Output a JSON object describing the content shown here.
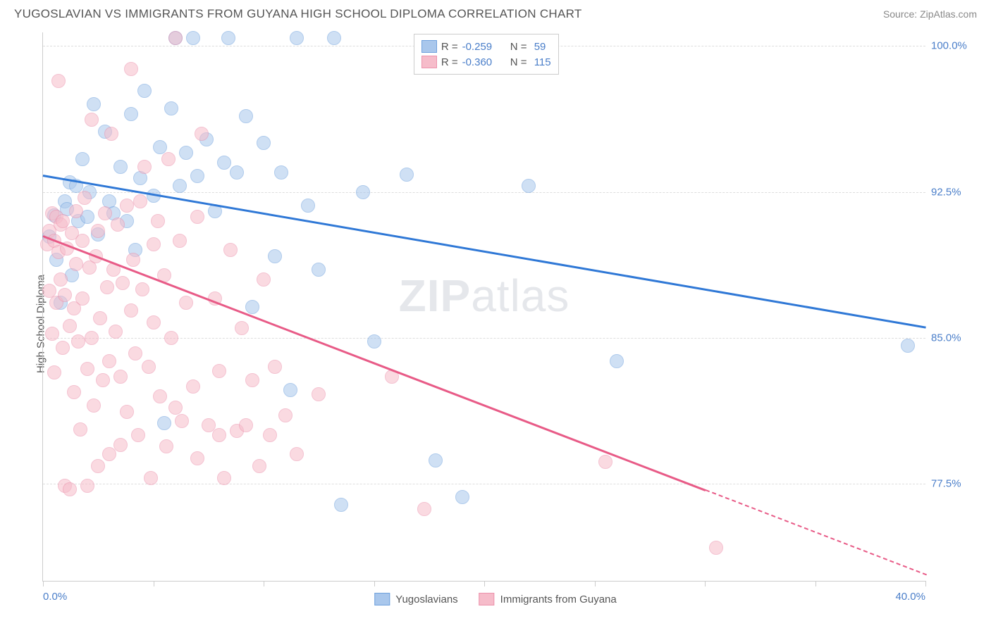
{
  "header": {
    "title": "YUGOSLAVIAN VS IMMIGRANTS FROM GUYANA HIGH SCHOOL DIPLOMA CORRELATION CHART",
    "source_prefix": "Source: ",
    "source": "ZipAtlas.com"
  },
  "watermark": {
    "part1": "ZIP",
    "part2": "atlas"
  },
  "chart": {
    "type": "scatter",
    "y_axis_title": "High School Diploma",
    "xlim": [
      0,
      40
    ],
    "ylim": [
      72.5,
      100.7
    ],
    "x_ticks": [
      0,
      5,
      10,
      15,
      20,
      25,
      30,
      35,
      40
    ],
    "x_tick_labels": {
      "0": "0.0%",
      "40": "40.0%"
    },
    "y_gridlines": [
      77.5,
      85.0,
      92.5,
      100.0
    ],
    "y_tick_labels": {
      "77.5": "77.5%",
      "85.0": "85.0%",
      "92.5": "92.5%",
      "100.0": "100.0%"
    },
    "grid_color": "#dddddd",
    "axis_color": "#cccccc",
    "label_color": "#4a7ec9",
    "label_fontsize": 15,
    "point_radius": 10,
    "point_opacity": 0.55,
    "series": [
      {
        "id": "yugoslavians",
        "label": "Yugoslavians",
        "fill": "#a9c7ec",
        "stroke": "#6fa1dd",
        "line_color": "#2f78d6",
        "R": "-0.259",
        "N": "59",
        "regression": {
          "x1": 0,
          "y1": 93.4,
          "x2": 40,
          "y2": 85.6,
          "dash_from": null
        },
        "points": [
          [
            0.3,
            90.2
          ],
          [
            0.5,
            91.3
          ],
          [
            0.6,
            89.0
          ],
          [
            0.8,
            86.8
          ],
          [
            1.0,
            92.0
          ],
          [
            1.1,
            91.6
          ],
          [
            1.2,
            93.0
          ],
          [
            1.3,
            88.2
          ],
          [
            1.5,
            92.8
          ],
          [
            1.6,
            91.0
          ],
          [
            1.8,
            94.2
          ],
          [
            2.0,
            91.2
          ],
          [
            2.1,
            92.5
          ],
          [
            2.3,
            97.0
          ],
          [
            2.5,
            90.3
          ],
          [
            2.8,
            95.6
          ],
          [
            3.0,
            92.0
          ],
          [
            3.2,
            91.4
          ],
          [
            3.5,
            93.8
          ],
          [
            3.8,
            91.0
          ],
          [
            4.0,
            96.5
          ],
          [
            4.2,
            89.5
          ],
          [
            4.4,
            93.2
          ],
          [
            4.6,
            97.7
          ],
          [
            5.0,
            92.3
          ],
          [
            5.3,
            94.8
          ],
          [
            5.5,
            80.6
          ],
          [
            5.8,
            96.8
          ],
          [
            6.0,
            100.4
          ],
          [
            6.2,
            92.8
          ],
          [
            6.5,
            94.5
          ],
          [
            6.8,
            100.4
          ],
          [
            7.0,
            93.3
          ],
          [
            7.4,
            95.2
          ],
          [
            7.8,
            91.5
          ],
          [
            8.2,
            94.0
          ],
          [
            8.4,
            100.4
          ],
          [
            8.8,
            93.5
          ],
          [
            9.2,
            96.4
          ],
          [
            9.5,
            86.6
          ],
          [
            10.0,
            95.0
          ],
          [
            10.5,
            89.2
          ],
          [
            10.8,
            93.5
          ],
          [
            11.2,
            82.3
          ],
          [
            11.5,
            100.4
          ],
          [
            12.0,
            91.8
          ],
          [
            12.5,
            88.5
          ],
          [
            13.2,
            100.4
          ],
          [
            13.5,
            76.4
          ],
          [
            14.5,
            92.5
          ],
          [
            15.0,
            84.8
          ],
          [
            16.5,
            93.4
          ],
          [
            17.8,
            78.7
          ],
          [
            19.0,
            76.8
          ],
          [
            22.0,
            92.8
          ],
          [
            26.0,
            83.8
          ],
          [
            39.2,
            84.6
          ]
        ]
      },
      {
        "id": "guyana",
        "label": "Immigrants from Guyana",
        "fill": "#f6bcca",
        "stroke": "#ec92ac",
        "line_color": "#e85b87",
        "R": "-0.360",
        "N": "115",
        "regression": {
          "x1": 0,
          "y1": 90.3,
          "x2": 40,
          "y2": 72.9,
          "dash_from": 30
        },
        "points": [
          [
            0.2,
            89.8
          ],
          [
            0.3,
            90.5
          ],
          [
            0.3,
            87.4
          ],
          [
            0.4,
            91.4
          ],
          [
            0.4,
            85.2
          ],
          [
            0.5,
            90.0
          ],
          [
            0.5,
            83.2
          ],
          [
            0.6,
            91.2
          ],
          [
            0.6,
            86.8
          ],
          [
            0.7,
            89.4
          ],
          [
            0.7,
            98.2
          ],
          [
            0.8,
            90.8
          ],
          [
            0.8,
            88.0
          ],
          [
            0.9,
            84.5
          ],
          [
            0.9,
            91.0
          ],
          [
            1.0,
            87.2
          ],
          [
            1.0,
            77.4
          ],
          [
            1.1,
            89.6
          ],
          [
            1.2,
            85.6
          ],
          [
            1.2,
            77.2
          ],
          [
            1.3,
            90.4
          ],
          [
            1.4,
            86.5
          ],
          [
            1.4,
            82.2
          ],
          [
            1.5,
            88.8
          ],
          [
            1.5,
            91.5
          ],
          [
            1.6,
            84.8
          ],
          [
            1.7,
            80.3
          ],
          [
            1.8,
            90.0
          ],
          [
            1.8,
            87.0
          ],
          [
            1.9,
            92.2
          ],
          [
            2.0,
            83.4
          ],
          [
            2.0,
            77.4
          ],
          [
            2.1,
            88.6
          ],
          [
            2.2,
            85.0
          ],
          [
            2.2,
            96.2
          ],
          [
            2.3,
            81.5
          ],
          [
            2.4,
            89.2
          ],
          [
            2.5,
            90.5
          ],
          [
            2.5,
            78.4
          ],
          [
            2.6,
            86.0
          ],
          [
            2.7,
            82.8
          ],
          [
            2.8,
            91.4
          ],
          [
            2.9,
            87.6
          ],
          [
            3.0,
            83.8
          ],
          [
            3.0,
            79.0
          ],
          [
            3.1,
            95.5
          ],
          [
            3.2,
            88.5
          ],
          [
            3.3,
            85.3
          ],
          [
            3.4,
            90.8
          ],
          [
            3.5,
            79.5
          ],
          [
            3.5,
            83.0
          ],
          [
            3.6,
            87.8
          ],
          [
            3.8,
            91.8
          ],
          [
            3.8,
            81.2
          ],
          [
            4.0,
            86.4
          ],
          [
            4.0,
            98.8
          ],
          [
            4.1,
            89.0
          ],
          [
            4.2,
            84.2
          ],
          [
            4.3,
            80.0
          ],
          [
            4.4,
            92.0
          ],
          [
            4.5,
            87.5
          ],
          [
            4.6,
            93.8
          ],
          [
            4.8,
            83.5
          ],
          [
            4.9,
            77.8
          ],
          [
            5.0,
            89.8
          ],
          [
            5.0,
            85.8
          ],
          [
            5.2,
            91.0
          ],
          [
            5.3,
            82.0
          ],
          [
            5.5,
            88.2
          ],
          [
            5.6,
            79.4
          ],
          [
            5.7,
            94.2
          ],
          [
            5.8,
            85.0
          ],
          [
            6.0,
            81.4
          ],
          [
            6.0,
            100.4
          ],
          [
            6.2,
            90.0
          ],
          [
            6.3,
            80.7
          ],
          [
            6.5,
            86.8
          ],
          [
            6.8,
            82.5
          ],
          [
            7.0,
            78.8
          ],
          [
            7.0,
            91.2
          ],
          [
            7.2,
            95.5
          ],
          [
            7.5,
            80.5
          ],
          [
            7.8,
            87.0
          ],
          [
            8.0,
            83.3
          ],
          [
            8.0,
            80.0
          ],
          [
            8.2,
            77.8
          ],
          [
            8.5,
            89.5
          ],
          [
            8.8,
            80.2
          ],
          [
            9.0,
            85.5
          ],
          [
            9.2,
            80.5
          ],
          [
            9.5,
            82.8
          ],
          [
            9.8,
            78.4
          ],
          [
            10.0,
            88.0
          ],
          [
            10.3,
            80.0
          ],
          [
            10.5,
            83.5
          ],
          [
            11.0,
            81.0
          ],
          [
            11.5,
            79.0
          ],
          [
            12.5,
            82.1
          ],
          [
            15.8,
            83.0
          ],
          [
            17.3,
            76.2
          ],
          [
            25.5,
            78.6
          ],
          [
            30.5,
            74.2
          ]
        ]
      }
    ]
  },
  "legend_top": {
    "r_prefix": "R = ",
    "n_prefix": "N = "
  },
  "legend_bottom": {
    "items": [
      "yugoslavians",
      "guyana"
    ]
  }
}
